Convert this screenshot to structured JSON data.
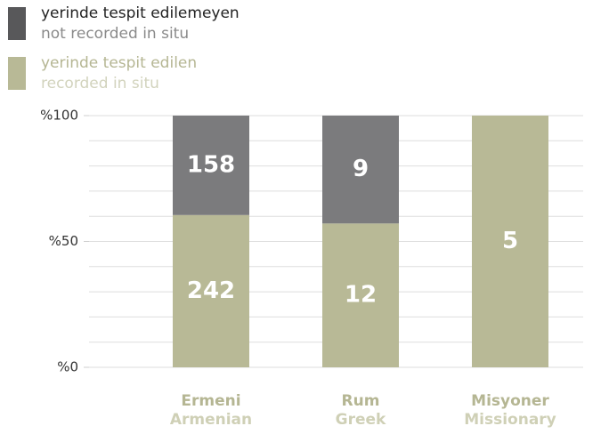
{
  "chart_data": {
    "type": "stacked_percent_bar",
    "categories": [
      "Ermeni",
      "Rum",
      "Misyoner"
    ],
    "categories_en": [
      "Armenian",
      "Greek",
      "Missionary"
    ],
    "series": [
      {
        "name": "yerinde tespit edilemeyen",
        "name_en": "not recorded in situ",
        "color": "#7b7b7d",
        "legend_color": "#58585a",
        "text_color": "#222222",
        "text_en_color": "#8a8a8a",
        "values": [
          158,
          9,
          0
        ]
      },
      {
        "name": "yerinde tespit edilen",
        "name_en": "recorded in situ",
        "color": "#b8b996",
        "legend_color": "#b8b996",
        "text_color": "#b5b693",
        "text_en_color": "#d2d3bd",
        "values": [
          242,
          12,
          5
        ]
      }
    ],
    "ylim": [
      0,
      100
    ],
    "yticks": [
      {
        "value": 0,
        "label": "%0"
      },
      {
        "value": 50,
        "label": "%50"
      },
      {
        "value": 100,
        "label": "%100"
      }
    ],
    "grid_ticks": [
      0,
      10,
      20,
      30,
      40,
      50,
      60,
      70,
      80,
      90,
      100
    ],
    "grid": true
  }
}
